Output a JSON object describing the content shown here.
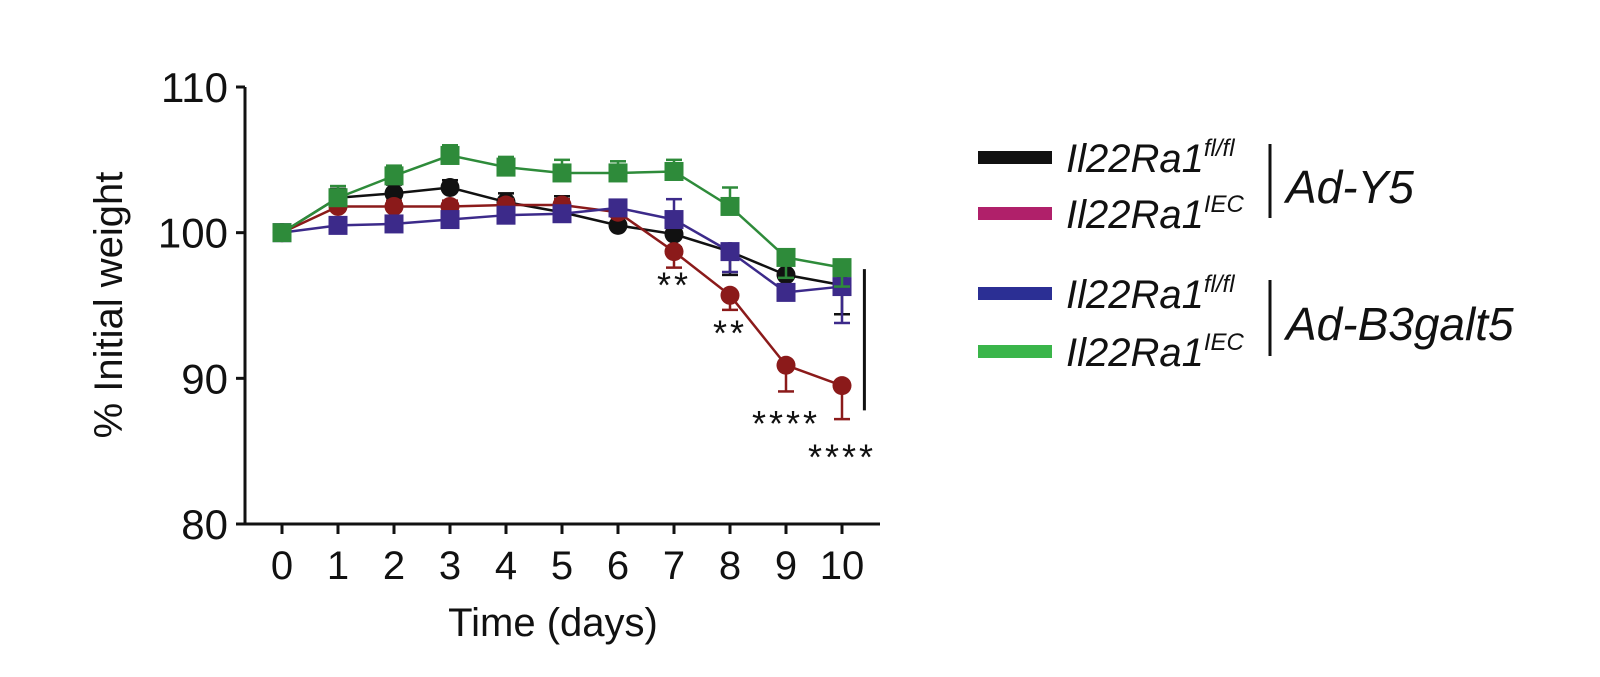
{
  "chart_data": {
    "type": "line",
    "title": "",
    "xlabel": "Time (days)",
    "ylabel": "% Initial weight",
    "xlim": [
      0,
      10
    ],
    "ylim": [
      80,
      110
    ],
    "x": [
      0,
      1,
      2,
      3,
      4,
      5,
      6,
      7,
      8,
      9,
      10
    ],
    "x_ticks": [
      "0",
      "1",
      "2",
      "3",
      "4",
      "5",
      "6",
      "7",
      "8",
      "9",
      "10"
    ],
    "y_ticks": [
      "80",
      "90",
      "100",
      "110"
    ],
    "y_tick_values": [
      80,
      90,
      100,
      110
    ],
    "grid": false,
    "legend_position": "right",
    "legend_groups": [
      {
        "label": "Ad-Y5",
        "entries": [
          {
            "base": "Il22Ra1",
            "sup": "fl/fl",
            "color": "#111111"
          },
          {
            "base": "Il22Ra1",
            "sup": "IEC",
            "color": "#b0206a"
          }
        ]
      },
      {
        "label": "Ad-B3galt5",
        "entries": [
          {
            "base": "Il22Ra1",
            "sup": "fl/fl",
            "color": "#2b2f94"
          },
          {
            "base": "Il22Ra1",
            "sup": "IEC",
            "color": "#3ab54a"
          }
        ]
      }
    ],
    "series": [
      {
        "marker": "circle",
        "color": "#111111",
        "values": [
          100,
          102.4,
          102.7,
          103.1,
          102.1,
          101.4,
          100.5,
          99.9,
          98.7,
          97.1,
          96.4
        ],
        "errors": [
          0,
          0.6,
          0.6,
          0.5,
          0.6,
          1.1,
          0.9,
          0.9,
          1.6,
          1.0,
          2.0
        ]
      },
      {
        "marker": "circle",
        "color": "#8b1a1a",
        "values": [
          100,
          101.8,
          101.8,
          101.8,
          101.9,
          101.9,
          101.4,
          98.7,
          95.7,
          90.9,
          89.5
        ],
        "errors": [
          0,
          0.4,
          0.4,
          0.4,
          0.4,
          0.4,
          0.4,
          1.1,
          1.0,
          1.8,
          2.3
        ]
      },
      {
        "marker": "square",
        "color": "#3c2a8a",
        "values": [
          100,
          100.5,
          100.6,
          100.9,
          101.2,
          101.3,
          101.7,
          100.9,
          98.7,
          95.9,
          96.3
        ],
        "errors": [
          0,
          0.4,
          0.4,
          0.4,
          0.4,
          0.4,
          0.4,
          1.4,
          1.4,
          0.4,
          2.5
        ]
      },
      {
        "marker": "square",
        "color": "#2e8b3a",
        "values": [
          100,
          102.4,
          103.9,
          105.3,
          104.5,
          104.1,
          104.1,
          104.2,
          101.8,
          98.3,
          97.6
        ],
        "errors": [
          0,
          0.8,
          0.7,
          0.7,
          0.7,
          0.9,
          0.8,
          0.8,
          1.3,
          1.4,
          1.3
        ]
      }
    ],
    "annotations": [
      {
        "text": "**",
        "x": 7,
        "y": 96.5
      },
      {
        "text": "**",
        "x": 8,
        "y": 93.2
      },
      {
        "text": "****",
        "x": 9,
        "y": 87.0
      },
      {
        "text": "****",
        "x": 10,
        "y": 84.7
      }
    ],
    "significance_bar": {
      "x": 10.4,
      "y_from": 97.5,
      "y_to": 87.8
    }
  }
}
